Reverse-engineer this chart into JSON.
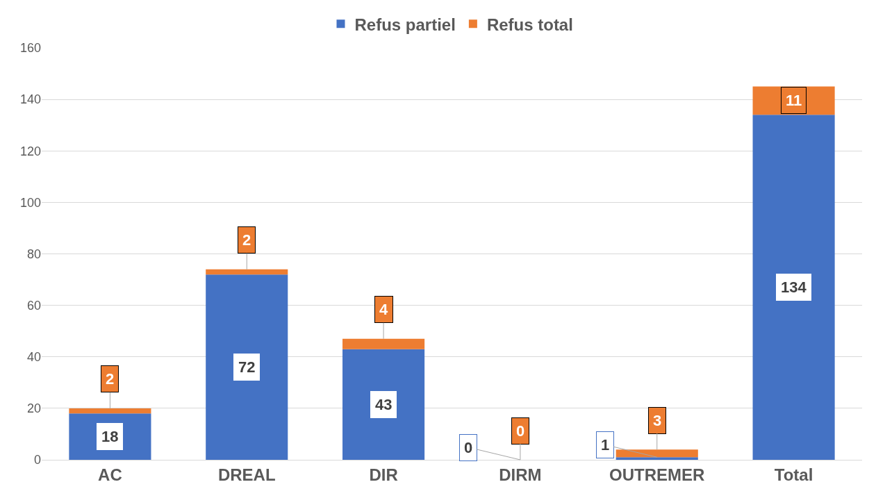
{
  "chart_data": {
    "type": "bar",
    "stacked": true,
    "categories": [
      "AC",
      "DREAL",
      "DIR",
      "DIRM",
      "OUTREMER",
      "Total"
    ],
    "series": [
      {
        "name": "Refus partiel",
        "color": "#4472c4",
        "values": [
          18,
          72,
          43,
          0,
          1,
          134
        ]
      },
      {
        "name": "Refus total",
        "color": "#ed7d31",
        "values": [
          2,
          2,
          4,
          0,
          3,
          11
        ]
      }
    ],
    "ylim": [
      0,
      160
    ],
    "yticks": [
      0,
      20,
      40,
      60,
      80,
      100,
      120,
      140,
      160
    ],
    "grid": "y",
    "legend": "top",
    "data_labels": true
  }
}
